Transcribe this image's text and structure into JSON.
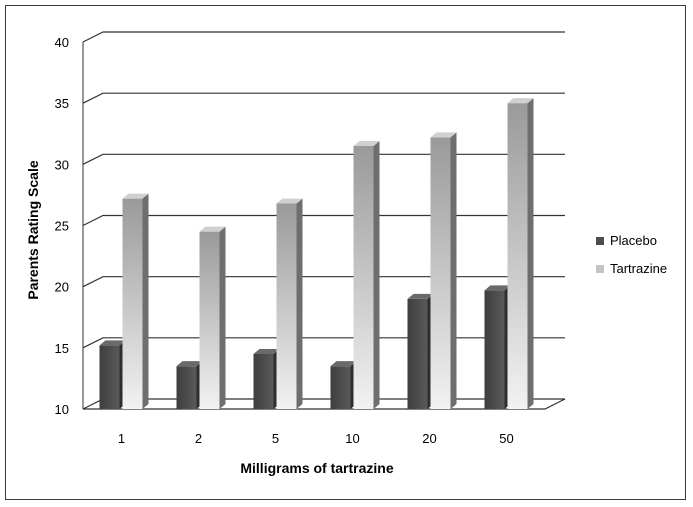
{
  "chart_data": {
    "type": "bar",
    "title": "",
    "xlabel": "Milligrams of tartrazine",
    "ylabel": "Parents Rating Scale",
    "categories": [
      "1",
      "2",
      "5",
      "10",
      "20",
      "50"
    ],
    "ylim": [
      10,
      40
    ],
    "yticks": [
      "10",
      "15",
      "20",
      "25",
      "30",
      "35",
      "40"
    ],
    "grid": true,
    "legend_position": "right",
    "series": [
      {
        "name": "Placebo",
        "color": "#4d4d4d",
        "values": [
          15.2,
          13.5,
          14.5,
          13.5,
          19,
          19.7
        ]
      },
      {
        "name": "Tartrazine",
        "color": "#bdbdbd",
        "values": [
          27.2,
          24.5,
          26.8,
          31.5,
          32.2,
          35
        ]
      }
    ]
  }
}
